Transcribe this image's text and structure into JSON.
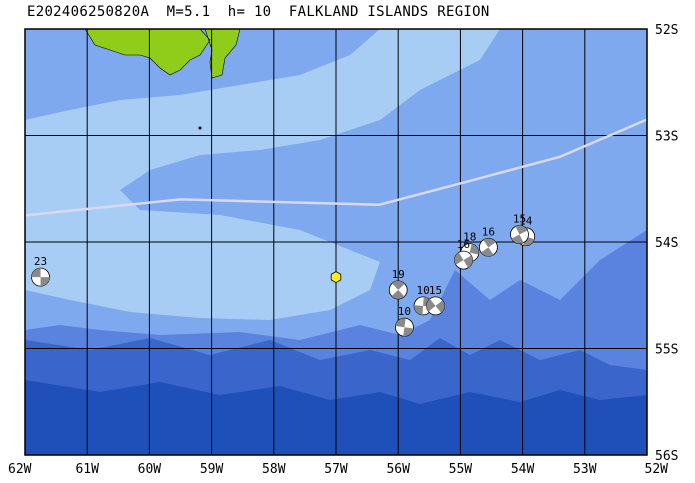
{
  "title": "E202406250820A  M=5.1  h= 10  FALKLAND ISLANDS REGION",
  "extent": {
    "lon": [
      -62,
      -52
    ],
    "lat": [
      -56,
      -52
    ]
  },
  "lon_labels": [
    "62W",
    "61W",
    "60W",
    "59W",
    "58W",
    "57W",
    "56W",
    "55W",
    "54W",
    "53W",
    "52W"
  ],
  "lat_labels": [
    "52S",
    "53S",
    "54S",
    "55S",
    "56S"
  ],
  "colors": {
    "land": "#8fcd1a",
    "shallow": "#a8cdf5",
    "mid": "#7fa9ee",
    "deep": "#5a83e0",
    "deeper": "#3a66cc",
    "deepest": "#1f4fb8",
    "plate_boundary": "#d8d8ee",
    "epicenter": "#ffee22"
  },
  "epicenter": {
    "lon": -57.0,
    "lat": -54.33
  },
  "plate_boundary": [
    [
      -62,
      -53.75
    ],
    [
      -59.5,
      -53.6
    ],
    [
      -56.3,
      -53.65
    ],
    [
      -55.0,
      -53.45
    ],
    [
      -53.4,
      -53.2
    ],
    [
      -52.0,
      -52.85
    ]
  ],
  "mechanisms": [
    {
      "label": "23",
      "lon": -61.75,
      "lat": -54.33
    },
    {
      "label": "19",
      "lon": -56.0,
      "lat": -54.45
    },
    {
      "label": "10",
      "lon": -55.6,
      "lat": -54.6
    },
    {
      "label": "15",
      "lon": -55.4,
      "lat": -54.6
    },
    {
      "label": "10",
      "lon": -55.9,
      "lat": -54.8
    },
    {
      "label": "16",
      "lon": -54.55,
      "lat": -54.05
    },
    {
      "label": "18",
      "lon": -54.85,
      "lat": -54.1
    },
    {
      "label": "16",
      "lon": -54.95,
      "lat": -54.17
    },
    {
      "label": "14",
      "lon": -53.95,
      "lat": -53.95
    },
    {
      "label": "15",
      "lon": -54.05,
      "lat": -53.93
    }
  ]
}
